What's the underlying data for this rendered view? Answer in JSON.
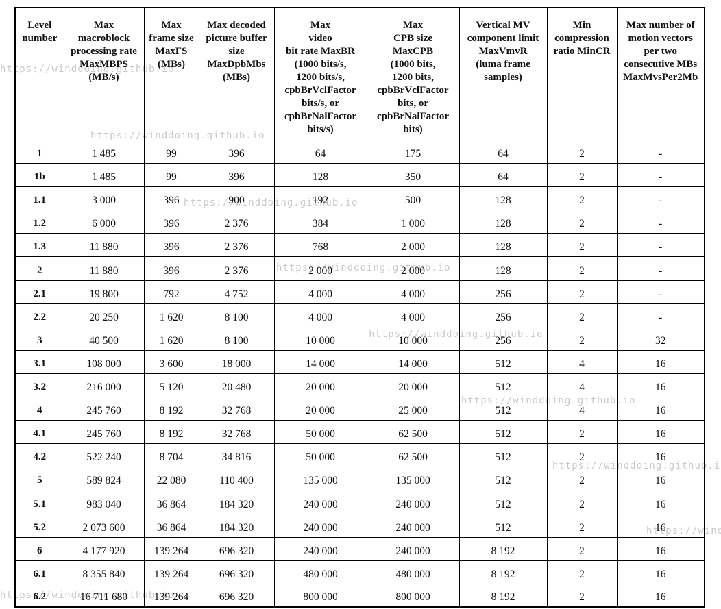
{
  "watermark": {
    "text": "https://winddoing.github.io",
    "color": "#cacaca"
  },
  "table": {
    "columns": [
      {
        "header": "Level\nnumber"
      },
      {
        "header": "Max\nmacroblock\nprocessing rate\nMaxMBPS\n(MB/s)"
      },
      {
        "header": "Max\nframe size\nMaxFS\n(MBs)"
      },
      {
        "header": "Max decoded\npicture buffer\nsize\nMaxDpbMbs\n(MBs)"
      },
      {
        "header": "Max\nvideo\nbit rate MaxBR\n(1000 bits/s,\n1200 bits/s,\ncpbBrVclFactor\nbits/s, or\ncpbBrNalFactor\nbits/s)"
      },
      {
        "header": "Max\nCPB size\nMaxCPB\n(1000 bits,\n1200 bits,\ncpbBrVclFactor\nbits, or\ncpbBrNalFactor\nbits)"
      },
      {
        "header": "Vertical MV\ncomponent limit\nMaxVmvR\n(luma frame\nsamples)"
      },
      {
        "header": "Min\ncompression\nratio MinCR"
      },
      {
        "header": "Max number of\nmotion vectors\nper two\nconsecutive MBs\nMaxMvsPer2Mb"
      }
    ],
    "rows": [
      [
        "1",
        "1 485",
        "99",
        "396",
        "64",
        "175",
        "64",
        "2",
        "-"
      ],
      [
        "1b",
        "1 485",
        "99",
        "396",
        "128",
        "350",
        "64",
        "2",
        "-"
      ],
      [
        "1.1",
        "3 000",
        "396",
        "900",
        "192",
        "500",
        "128",
        "2",
        "-"
      ],
      [
        "1.2",
        "6 000",
        "396",
        "2 376",
        "384",
        "1 000",
        "128",
        "2",
        "-"
      ],
      [
        "1.3",
        "11 880",
        "396",
        "2 376",
        "768",
        "2 000",
        "128",
        "2",
        "-"
      ],
      [
        "2",
        "11 880",
        "396",
        "2 376",
        "2 000",
        "2 000",
        "128",
        "2",
        "-"
      ],
      [
        "2.1",
        "19 800",
        "792",
        "4 752",
        "4 000",
        "4 000",
        "256",
        "2",
        "-"
      ],
      [
        "2.2",
        "20 250",
        "1 620",
        "8 100",
        "4 000",
        "4 000",
        "256",
        "2",
        "-"
      ],
      [
        "3",
        "40 500",
        "1 620",
        "8 100",
        "10 000",
        "10 000",
        "256",
        "2",
        "32"
      ],
      [
        "3.1",
        "108 000",
        "3 600",
        "18 000",
        "14 000",
        "14 000",
        "512",
        "4",
        "16"
      ],
      [
        "3.2",
        "216 000",
        "5 120",
        "20 480",
        "20 000",
        "20 000",
        "512",
        "4",
        "16"
      ],
      [
        "4",
        "245 760",
        "8 192",
        "32 768",
        "20 000",
        "25 000",
        "512",
        "4",
        "16"
      ],
      [
        "4.1",
        "245 760",
        "8 192",
        "32 768",
        "50 000",
        "62 500",
        "512",
        "2",
        "16"
      ],
      [
        "4.2",
        "522 240",
        "8 704",
        "34 816",
        "50 000",
        "62 500",
        "512",
        "2",
        "16"
      ],
      [
        "5",
        "589 824",
        "22 080",
        "110 400",
        "135 000",
        "135 000",
        "512",
        "2",
        "16"
      ],
      [
        "5.1",
        "983 040",
        "36 864",
        "184 320",
        "240 000",
        "240 000",
        "512",
        "2",
        "16"
      ],
      [
        "5.2",
        "2 073 600",
        "36 864",
        "184 320",
        "240 000",
        "240 000",
        "512",
        "2",
        "16"
      ],
      [
        "6",
        "4 177 920",
        "139 264",
        "696 320",
        "240 000",
        "240 000",
        "8 192",
        "2",
        "16"
      ],
      [
        "6.1",
        "8 355 840",
        "139 264",
        "696 320",
        "480 000",
        "480 000",
        "8 192",
        "2",
        "16"
      ],
      [
        "6.2",
        "16 711 680",
        "139 264",
        "696 320",
        "800 000",
        "800 000",
        "8 192",
        "2",
        "16"
      ]
    ]
  }
}
